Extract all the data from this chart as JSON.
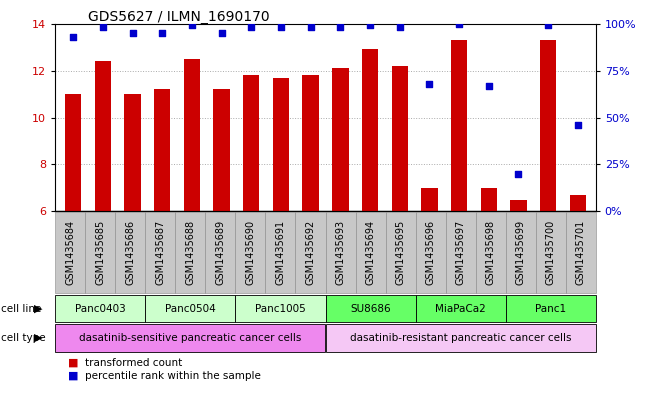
{
  "title": "GDS5627 / ILMN_1690170",
  "samples": [
    "GSM1435684",
    "GSM1435685",
    "GSM1435686",
    "GSM1435687",
    "GSM1435688",
    "GSM1435689",
    "GSM1435690",
    "GSM1435691",
    "GSM1435692",
    "GSM1435693",
    "GSM1435694",
    "GSM1435695",
    "GSM1435696",
    "GSM1435697",
    "GSM1435698",
    "GSM1435699",
    "GSM1435700",
    "GSM1435701"
  ],
  "bar_values": [
    11.0,
    12.4,
    11.0,
    11.2,
    12.5,
    11.2,
    11.8,
    11.7,
    11.8,
    12.1,
    12.9,
    12.2,
    7.0,
    13.3,
    7.0,
    6.5,
    13.3,
    6.7
  ],
  "percentile_values": [
    93,
    98,
    95,
    95,
    99,
    95,
    98,
    98,
    98,
    98,
    99,
    98,
    68,
    100,
    67,
    20,
    99,
    46
  ],
  "bar_color": "#cc0000",
  "percentile_color": "#0000cc",
  "ylim_left": [
    6,
    14
  ],
  "ylim_right": [
    0,
    100
  ],
  "yticks_left": [
    6,
    8,
    10,
    12,
    14
  ],
  "yticks_right": [
    0,
    25,
    50,
    75,
    100
  ],
  "ytick_labels_right": [
    "0%",
    "25%",
    "50%",
    "75%",
    "100%"
  ],
  "cell_lines": [
    {
      "name": "Panc0403",
      "start": 0,
      "end": 3,
      "color": "#ccffcc"
    },
    {
      "name": "Panc0504",
      "start": 3,
      "end": 6,
      "color": "#ccffcc"
    },
    {
      "name": "Panc1005",
      "start": 6,
      "end": 9,
      "color": "#ccffcc"
    },
    {
      "name": "SU8686",
      "start": 9,
      "end": 12,
      "color": "#66ff66"
    },
    {
      "name": "MiaPaCa2",
      "start": 12,
      "end": 15,
      "color": "#66ff66"
    },
    {
      "name": "Panc1",
      "start": 15,
      "end": 18,
      "color": "#66ff66"
    }
  ],
  "cell_types": [
    {
      "name": "dasatinib-sensitive pancreatic cancer cells",
      "start": 0,
      "end": 9,
      "color": "#ee88ee"
    },
    {
      "name": "dasatinib-resistant pancreatic cancer cells",
      "start": 9,
      "end": 18,
      "color": "#f5c8f5"
    }
  ],
  "legend_items": [
    {
      "label": "transformed count",
      "color": "#cc0000"
    },
    {
      "label": "percentile rank within the sample",
      "color": "#0000cc"
    }
  ],
  "bar_width": 0.55,
  "bg_color": "#ffffff",
  "title_fontsize": 10,
  "tick_fontsize": 7,
  "annotation_fontsize": 7.5,
  "gsm_bg_color": "#c8c8c8",
  "gsm_border_color": "#888888"
}
